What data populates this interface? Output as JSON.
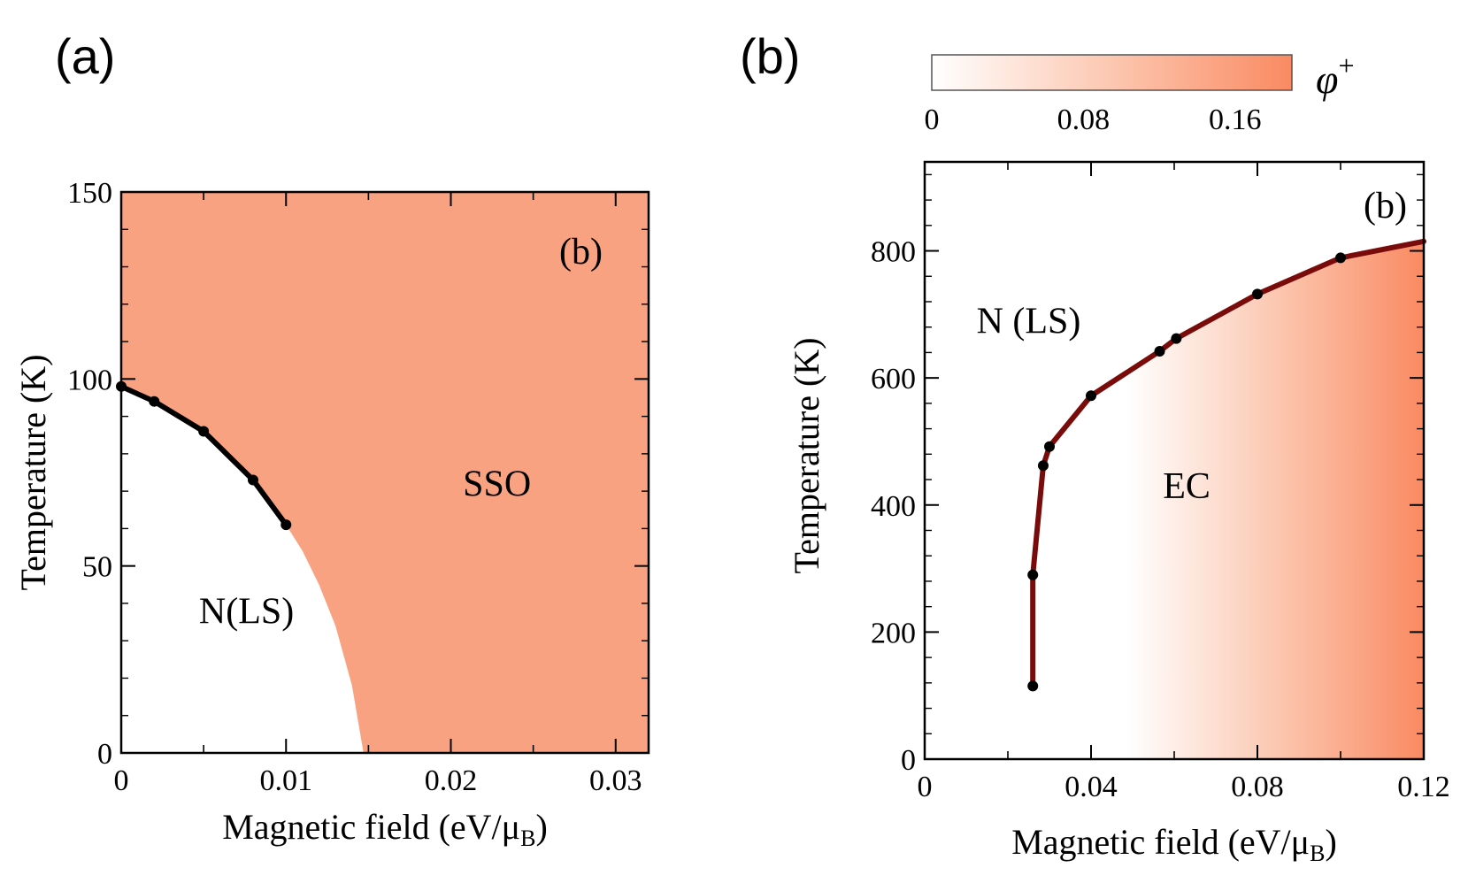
{
  "panels": {
    "a": {
      "label": "(a)"
    },
    "b": {
      "label": "(b)"
    }
  },
  "colors": {
    "phase": "#f9a282",
    "phase_deep": "#fa8a62",
    "boundary_a": "#000000",
    "boundary_b": "#7a0b0b"
  },
  "chart_data": [
    {
      "id": "a",
      "type": "line",
      "title": "",
      "inner_label": "(b)",
      "xlabel": "Magnetic field (eV/μ",
      "xlabel_sub": "B",
      "xlabel_end": ")",
      "ylabel": "Temperature (K)",
      "xlim": [
        0,
        0.032
      ],
      "ylim": [
        0,
        150
      ],
      "xticks": [
        0,
        0.01,
        0.02,
        0.03
      ],
      "xtick_labels": [
        "0",
        "0.01",
        "0.02",
        "0.03"
      ],
      "yticks": [
        0,
        50,
        100,
        150
      ],
      "ytick_labels": [
        "0",
        "50",
        "100",
        "150"
      ],
      "regions": [
        {
          "name": "N(LS)",
          "x": 0.0076,
          "y": 38
        },
        {
          "name": "SSO",
          "x": 0.0228,
          "y": 72
        }
      ],
      "boundary": {
        "x": [
          0,
          0.002,
          0.005,
          0.008,
          0.01
        ],
        "y": [
          98,
          94,
          86,
          73,
          61
        ]
      },
      "phase_edge": {
        "x": [
          0.01,
          0.011,
          0.012,
          0.013,
          0.014,
          0.0147
        ],
        "y": [
          61,
          54,
          45,
          34,
          18,
          0
        ]
      },
      "grid": false
    },
    {
      "id": "b",
      "type": "heatmap",
      "title": "",
      "inner_label": "(b)",
      "xlabel": "Magnetic field (eV/μ",
      "xlabel_sub": "B",
      "xlabel_end": ")",
      "ylabel": "Temperature (K)",
      "xlim": [
        0,
        0.12
      ],
      "ylim": [
        0,
        940
      ],
      "xticks": [
        0,
        0.04,
        0.08,
        0.12
      ],
      "xtick_labels": [
        "0",
        "0.04",
        "0.08",
        "0.12"
      ],
      "yticks": [
        0,
        200,
        400,
        600,
        800
      ],
      "ytick_labels": [
        "0",
        "200",
        "400",
        "600",
        "800"
      ],
      "regions": [
        {
          "name": "N (LS)",
          "x": 0.025,
          "y": 690
        },
        {
          "name": "EC",
          "x": 0.063,
          "y": 430
        }
      ],
      "boundary": {
        "x": [
          0.026,
          0.026,
          0.0285,
          0.03,
          0.04,
          0.0565,
          0.0605,
          0.08,
          0.1,
          0.12
        ],
        "y": [
          115,
          290,
          462,
          492,
          572,
          642,
          662,
          732,
          789,
          815
        ]
      },
      "colorbar": {
        "label": "φ",
        "label_sup": "+",
        "range": [
          0,
          0.19
        ],
        "ticks": [
          0,
          0.08,
          0.16
        ],
        "tick_labels": [
          "0",
          "0.08",
          "0.16"
        ]
      },
      "grid": false
    }
  ]
}
